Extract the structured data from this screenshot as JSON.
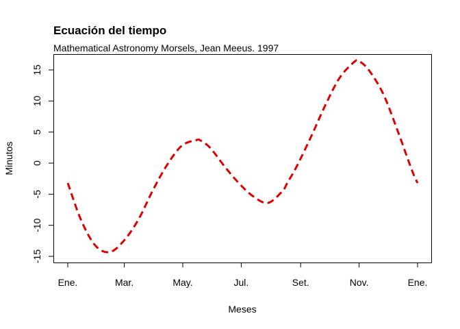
{
  "chart_data": {
    "type": "line",
    "title": "Ecuación del tiempo",
    "subtitle": "Mathematical Astronomy Morsels, Jean Meeus. 1997",
    "xlabel": "Meses",
    "ylabel": "Minutos",
    "xlim": [
      1,
      366
    ],
    "ylim": [
      -15,
      17
    ],
    "x_ticks": [
      {
        "value": 1,
        "label": "Ene."
      },
      {
        "value": 60,
        "label": "Mar."
      },
      {
        "value": 121,
        "label": "May."
      },
      {
        "value": 182,
        "label": "Jul."
      },
      {
        "value": 244,
        "label": "Set."
      },
      {
        "value": 305,
        "label": "Nov."
      },
      {
        "value": 366,
        "label": "Ene."
      }
    ],
    "y_ticks": [
      -15,
      -10,
      -5,
      0,
      5,
      10,
      15
    ],
    "line_style": "dashed",
    "line_color": "#e00000",
    "grid": false,
    "series": [
      {
        "x": [
          1,
          15,
          30,
          45,
          60,
          75,
          90,
          105,
          120,
          135,
          140,
          150,
          165,
          180,
          195,
          210,
          225,
          230,
          240,
          255,
          270,
          285,
          300,
          305,
          315,
          330,
          345,
          360,
          366
        ],
        "y": [
          -3.2,
          -9.2,
          -13.3,
          -14.3,
          -12.4,
          -9.0,
          -4.3,
          -0.2,
          2.8,
          3.7,
          3.6,
          2.4,
          -0.6,
          -3.3,
          -5.4,
          -6.4,
          -4.5,
          -3.2,
          -0.5,
          4.3,
          9.4,
          13.8,
          16.3,
          16.4,
          15.0,
          11.2,
          5.3,
          -1.1,
          -3.2
        ]
      }
    ]
  }
}
